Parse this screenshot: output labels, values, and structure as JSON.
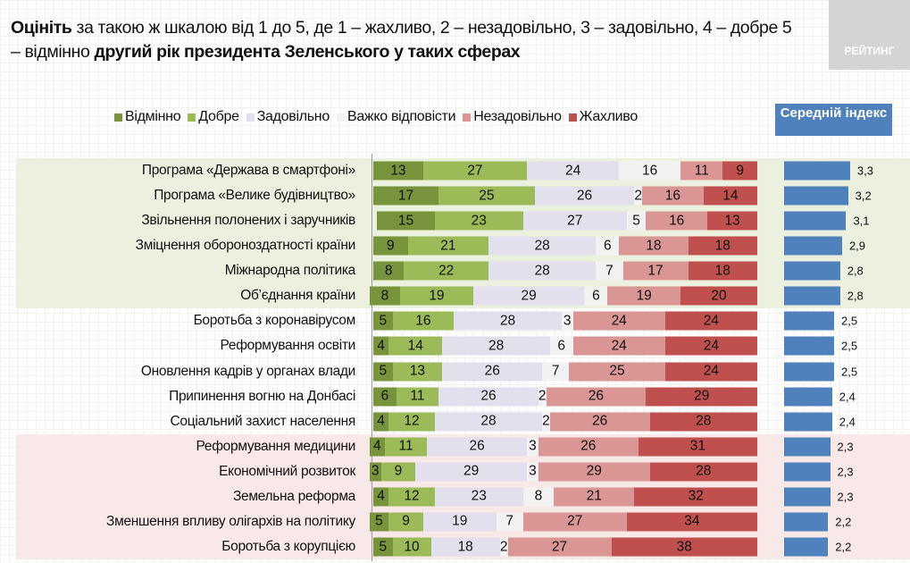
{
  "title": {
    "bold1": "Оцініть",
    "text1": " за такою ж шкалою від 1 до 5, де 1 – жахливо, 2 – незадовільно, 3 – задовільно, 4 – добре 5 – відмінно ",
    "bold2": "другий рік президента Зеленського у таких сферах"
  },
  "logo": "РЕЙТИНГ",
  "index_header": "Середній індекс",
  "chart_data": {
    "type": "bar",
    "stacked": true,
    "orientation": "horizontal",
    "legend_position": "top",
    "series": [
      {
        "name": "Відмінно",
        "color": "#77933c",
        "values": [
          13,
          17,
          15,
          9,
          8,
          8,
          5,
          4,
          5,
          6,
          4,
          4,
          3,
          4,
          5,
          5
        ]
      },
      {
        "name": "Добре",
        "color": "#9bbb59",
        "values": [
          27,
          25,
          23,
          21,
          22,
          19,
          16,
          14,
          13,
          11,
          12,
          11,
          9,
          12,
          9,
          10
        ]
      },
      {
        "name": "Задовільно",
        "color": "#e4dfec",
        "values": [
          24,
          26,
          27,
          28,
          28,
          29,
          28,
          28,
          26,
          26,
          28,
          26,
          29,
          23,
          19,
          18
        ]
      },
      {
        "name": "Важко відповісти",
        "color": "#f2f2f2",
        "values": [
          16,
          2,
          5,
          6,
          7,
          6,
          3,
          6,
          7,
          2,
          2,
          3,
          3,
          8,
          7,
          2
        ]
      },
      {
        "name": "Незадовільно",
        "color": "#da9694",
        "values": [
          11,
          16,
          16,
          18,
          17,
          19,
          24,
          24,
          25,
          26,
          26,
          26,
          29,
          21,
          27,
          27
        ]
      },
      {
        "name": "Жахливо",
        "color": "#c0504d",
        "values": [
          9,
          14,
          13,
          18,
          18,
          20,
          24,
          24,
          24,
          29,
          28,
          31,
          28,
          32,
          34,
          38
        ]
      }
    ],
    "categories": [
      "Програма «Держава в смартфоні»",
      "Програма «Велике будівництво»",
      "Звільнення полонених і заручників",
      "Зміцнення обороноздатності країни",
      "Міжнародна політика",
      "Об’єднання країни",
      "Боротьба з коронавірусом",
      "Реформування освіти",
      "Оновлення кадрів у органах влади",
      "Припинення вогню на Донбасі",
      "Соціальний захист населення",
      "Реформування медицини",
      "Економічний розвиток",
      "Земельна реформа",
      "Зменшення впливу олігархів на політику",
      "Боротьба з корупцією"
    ],
    "index": {
      "name": "Середній індекс",
      "color": "#4f81bd",
      "values": [
        "3,3",
        "3,2",
        "3,1",
        "2,9",
        "2,8",
        "2,8",
        "2,5",
        "2,5",
        "2,5",
        "2,4",
        "2,4",
        "2,3",
        "2,3",
        "2,3",
        "2,2",
        "2,2"
      ]
    },
    "highlight_bands": [
      {
        "rows": [
          0,
          5
        ],
        "color": "#ebf1de"
      },
      {
        "rows": [
          11,
          15
        ],
        "color": "#f9e8e8"
      }
    ]
  }
}
